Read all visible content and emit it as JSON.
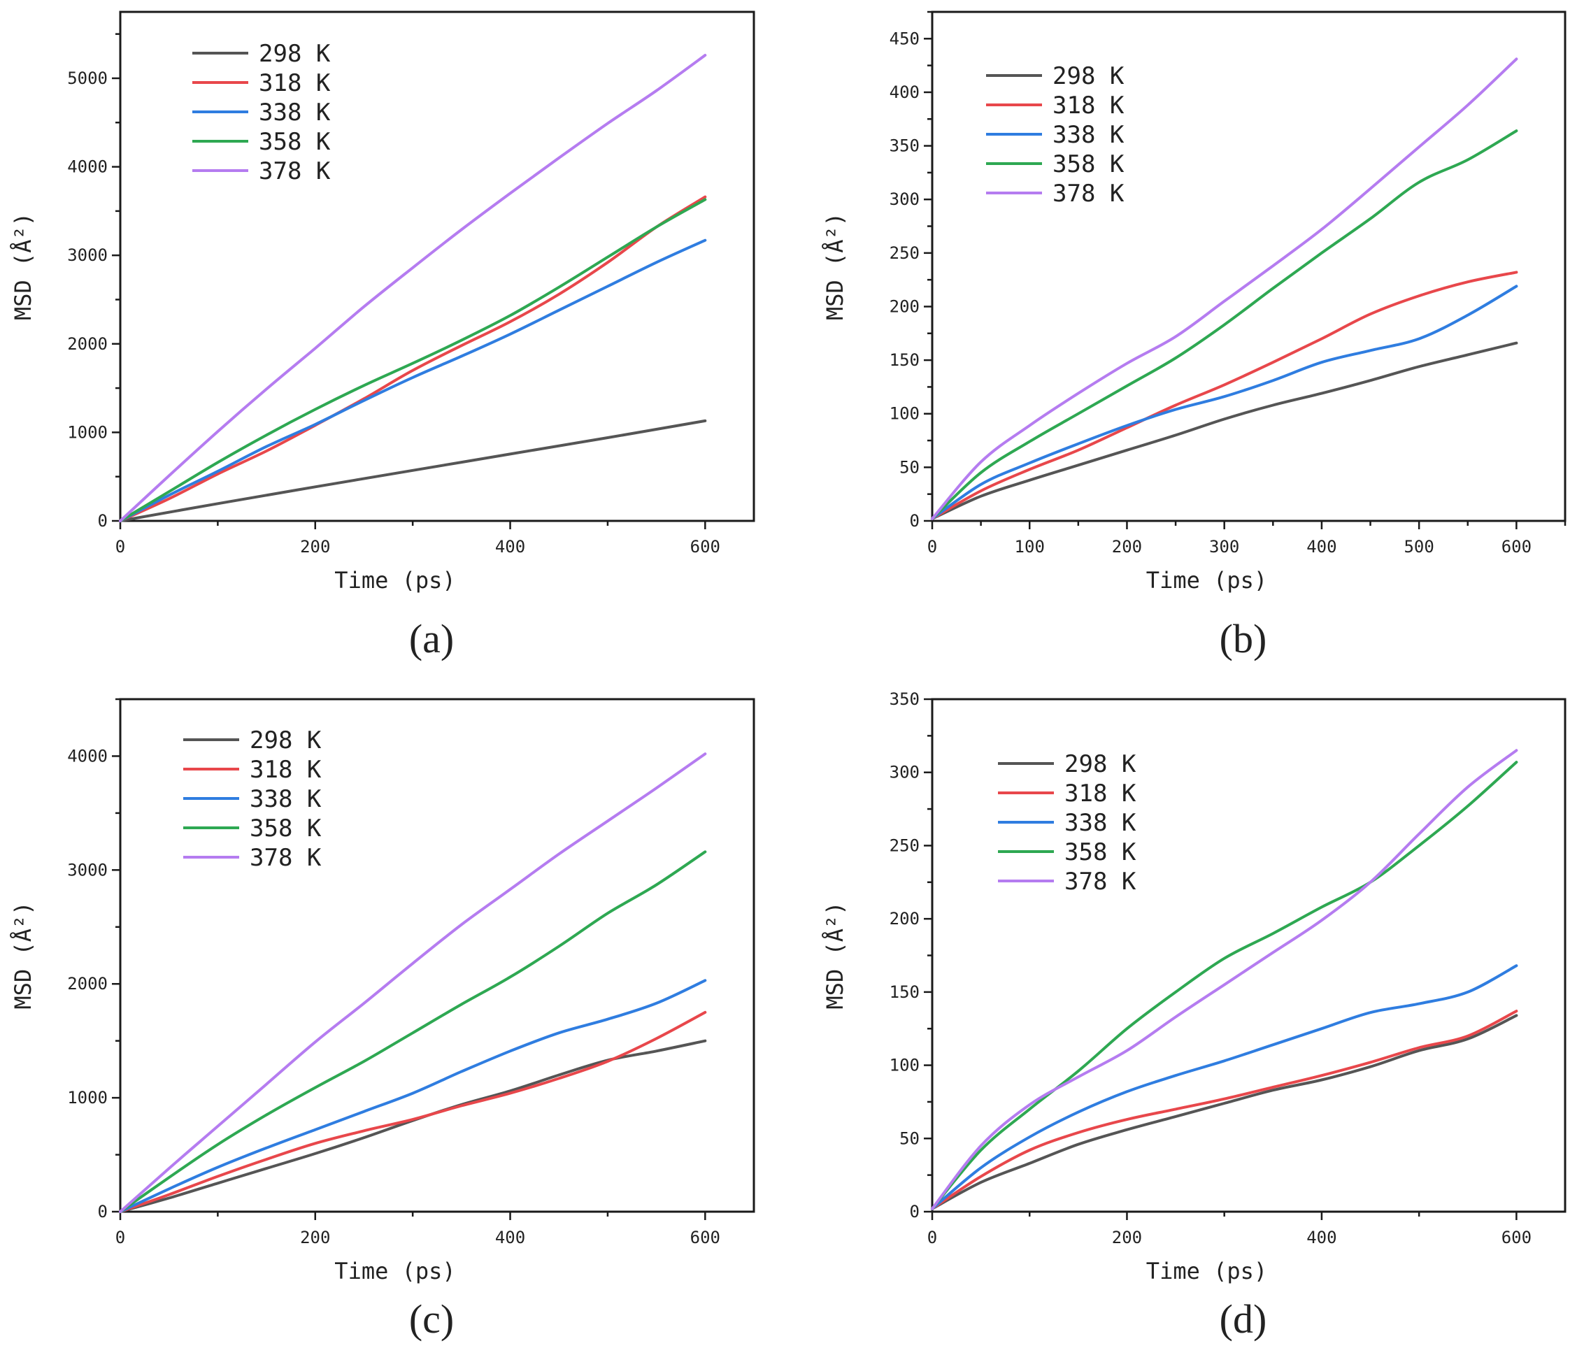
{
  "chart_data": [
    {
      "type": "line",
      "panel_label": "(a)",
      "xlabel": "Time (ps)",
      "ylabel": "MSD (Å²)",
      "xlim": [
        0,
        650
      ],
      "ylim": [
        0,
        5750
      ],
      "xticks": [
        0,
        200,
        400,
        600
      ],
      "yticks": [
        0,
        1000,
        2000,
        3000,
        4000,
        5000
      ],
      "legend_position": "top-left",
      "series": [
        {
          "name": "298 K",
          "color": "#555555",
          "x": [
            0,
            100,
            200,
            300,
            400,
            500,
            600
          ],
          "y": [
            0,
            195,
            385,
            570,
            755,
            940,
            1130
          ]
        },
        {
          "name": "318 K",
          "color": "#e8474b",
          "x": [
            0,
            50,
            100,
            150,
            200,
            250,
            300,
            350,
            400,
            450,
            500,
            550,
            600
          ],
          "y": [
            0,
            250,
            530,
            790,
            1080,
            1380,
            1700,
            1980,
            2250,
            2560,
            2920,
            3320,
            3660
          ]
        },
        {
          "name": "338 K",
          "color": "#2f7de0",
          "x": [
            0,
            50,
            100,
            150,
            200,
            250,
            300,
            350,
            400,
            450,
            500,
            550,
            600
          ],
          "y": [
            0,
            290,
            560,
            840,
            1090,
            1360,
            1620,
            1860,
            2110,
            2380,
            2650,
            2920,
            3170
          ]
        },
        {
          "name": "358 K",
          "color": "#2ea852",
          "x": [
            0,
            50,
            100,
            150,
            200,
            250,
            300,
            350,
            400,
            450,
            500,
            550,
            600
          ],
          "y": [
            0,
            330,
            660,
            970,
            1260,
            1530,
            1780,
            2040,
            2320,
            2640,
            2980,
            3320,
            3630
          ]
        },
        {
          "name": "378 K",
          "color": "#b57cf0",
          "x": [
            0,
            50,
            100,
            150,
            200,
            250,
            300,
            350,
            400,
            450,
            500,
            550,
            600
          ],
          "y": [
            0,
            510,
            1010,
            1490,
            1950,
            2420,
            2860,
            3290,
            3700,
            4100,
            4490,
            4860,
            5260
          ]
        }
      ]
    },
    {
      "type": "line",
      "panel_label": "(b)",
      "xlabel": "Time (ps)",
      "ylabel": "MSD (Å²)",
      "xlim": [
        0,
        650
      ],
      "ylim": [
        0,
        475
      ],
      "xticks": [
        0,
        100,
        200,
        300,
        400,
        500,
        600
      ],
      "yticks": [
        0,
        50,
        100,
        150,
        200,
        250,
        300,
        350,
        400,
        450
      ],
      "legend_position": "top-left",
      "series": [
        {
          "name": "298 K",
          "color": "#555555",
          "x": [
            0,
            50,
            100,
            150,
            200,
            250,
            300,
            350,
            400,
            450,
            500,
            550,
            600
          ],
          "y": [
            2,
            23,
            38,
            52,
            66,
            80,
            95,
            108,
            119,
            131,
            144,
            155,
            166
          ]
        },
        {
          "name": "318 K",
          "color": "#e8474b",
          "x": [
            0,
            50,
            100,
            150,
            200,
            250,
            300,
            350,
            400,
            450,
            500,
            550,
            600
          ],
          "y": [
            2,
            28,
            48,
            66,
            87,
            108,
            127,
            148,
            170,
            193,
            210,
            223,
            232
          ]
        },
        {
          "name": "338 K",
          "color": "#2f7de0",
          "x": [
            0,
            50,
            100,
            150,
            200,
            250,
            300,
            350,
            400,
            450,
            500,
            550,
            600
          ],
          "y": [
            2,
            34,
            54,
            72,
            89,
            104,
            116,
            131,
            148,
            159,
            170,
            192,
            219
          ]
        },
        {
          "name": "358 K",
          "color": "#2ea852",
          "x": [
            0,
            50,
            100,
            150,
            200,
            250,
            300,
            350,
            400,
            450,
            500,
            550,
            600
          ],
          "y": [
            2,
            45,
            74,
            100,
            126,
            152,
            183,
            217,
            250,
            282,
            316,
            337,
            364
          ]
        },
        {
          "name": "378 K",
          "color": "#b57cf0",
          "x": [
            0,
            50,
            100,
            150,
            200,
            250,
            300,
            350,
            400,
            450,
            500,
            550,
            600
          ],
          "y": [
            2,
            55,
            89,
            119,
            147,
            172,
            205,
            238,
            272,
            310,
            349,
            388,
            431
          ]
        }
      ]
    },
    {
      "type": "line",
      "panel_label": "(c)",
      "xlabel": "Time (ps)",
      "ylabel": "MSD (Å²)",
      "xlim": [
        0,
        650
      ],
      "ylim": [
        0,
        4500
      ],
      "xticks": [
        0,
        200,
        400,
        600
      ],
      "yticks": [
        0,
        1000,
        2000,
        3000,
        4000
      ],
      "legend_position": "top-left",
      "series": [
        {
          "name": "298 K",
          "color": "#555555",
          "x": [
            0,
            50,
            100,
            150,
            200,
            250,
            300,
            350,
            400,
            450,
            500,
            550,
            600
          ],
          "y": [
            0,
            120,
            250,
            380,
            510,
            650,
            800,
            940,
            1060,
            1200,
            1330,
            1410,
            1500
          ]
        },
        {
          "name": "318 K",
          "color": "#e8474b",
          "x": [
            0,
            50,
            100,
            150,
            200,
            250,
            300,
            350,
            400,
            450,
            500,
            550,
            600
          ],
          "y": [
            0,
            150,
            310,
            460,
            600,
            710,
            810,
            930,
            1040,
            1170,
            1320,
            1520,
            1750
          ]
        },
        {
          "name": "338 K",
          "color": "#2f7de0",
          "x": [
            0,
            50,
            100,
            150,
            200,
            250,
            300,
            350,
            400,
            450,
            500,
            550,
            600
          ],
          "y": [
            0,
            200,
            390,
            560,
            720,
            880,
            1040,
            1230,
            1410,
            1570,
            1690,
            1830,
            2030
          ]
        },
        {
          "name": "358 K",
          "color": "#2ea852",
          "x": [
            0,
            50,
            100,
            150,
            200,
            250,
            300,
            350,
            400,
            450,
            500,
            550,
            600
          ],
          "y": [
            0,
            300,
            590,
            850,
            1090,
            1320,
            1570,
            1820,
            2060,
            2330,
            2620,
            2870,
            3160
          ]
        },
        {
          "name": "378 K",
          "color": "#b57cf0",
          "x": [
            0,
            50,
            100,
            150,
            200,
            250,
            300,
            350,
            400,
            450,
            500,
            550,
            600
          ],
          "y": [
            0,
            380,
            750,
            1120,
            1490,
            1830,
            2180,
            2520,
            2830,
            3140,
            3430,
            3720,
            4020
          ]
        }
      ]
    },
    {
      "type": "line",
      "panel_label": "(d)",
      "xlabel": "Time (ps)",
      "ylabel": "MSD (Å²)",
      "xlim": [
        0,
        650
      ],
      "ylim": [
        0,
        350
      ],
      "xticks": [
        0,
        200,
        400,
        600
      ],
      "yticks": [
        0,
        50,
        100,
        150,
        200,
        250,
        300,
        350
      ],
      "legend_position": "top-left",
      "series": [
        {
          "name": "298 K",
          "color": "#555555",
          "x": [
            0,
            50,
            100,
            150,
            200,
            250,
            300,
            350,
            400,
            450,
            500,
            550,
            600
          ],
          "y": [
            2,
            20,
            33,
            46,
            56,
            65,
            74,
            83,
            90,
            99,
            110,
            118,
            134
          ]
        },
        {
          "name": "318 K",
          "color": "#e8474b",
          "x": [
            0,
            50,
            100,
            150,
            200,
            250,
            300,
            350,
            400,
            450,
            500,
            550,
            600
          ],
          "y": [
            2,
            24,
            42,
            54,
            63,
            70,
            77,
            85,
            93,
            102,
            112,
            120,
            137
          ]
        },
        {
          "name": "338 K",
          "color": "#2f7de0",
          "x": [
            0,
            50,
            100,
            150,
            200,
            250,
            300,
            350,
            400,
            450,
            500,
            550,
            600
          ],
          "y": [
            2,
            30,
            51,
            68,
            82,
            93,
            103,
            114,
            125,
            136,
            142,
            150,
            168
          ]
        },
        {
          "name": "358 K",
          "color": "#2ea852",
          "x": [
            0,
            50,
            100,
            150,
            200,
            250,
            300,
            350,
            400,
            450,
            500,
            550,
            600
          ],
          "y": [
            2,
            42,
            70,
            96,
            125,
            150,
            173,
            190,
            208,
            225,
            250,
            277,
            307
          ]
        },
        {
          "name": "378 K",
          "color": "#b57cf0",
          "x": [
            0,
            50,
            100,
            150,
            200,
            250,
            300,
            350,
            400,
            450,
            500,
            550,
            600
          ],
          "y": [
            2,
            45,
            73,
            92,
            110,
            133,
            155,
            177,
            199,
            225,
            258,
            290,
            315
          ]
        }
      ]
    }
  ]
}
